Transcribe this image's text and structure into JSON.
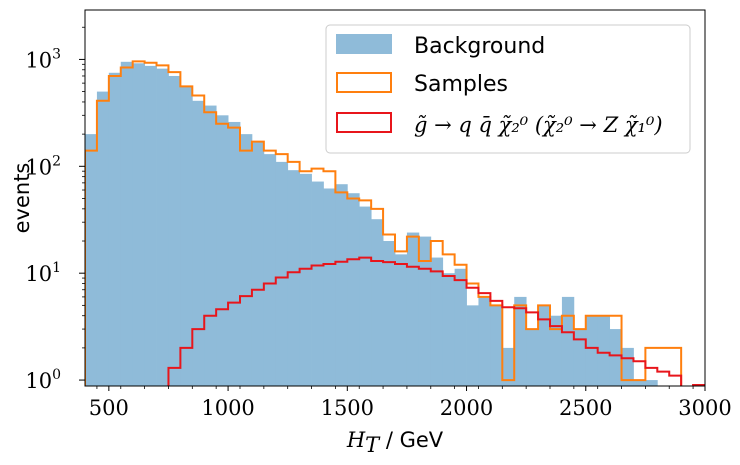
{
  "chart_data": {
    "type": "histogram",
    "xlabel": "H_T / GeV",
    "ylabel": "events",
    "xlim": [
      400,
      3000
    ],
    "ylim": [
      0.88,
      2900
    ],
    "yscale": "log",
    "bin_width": 50,
    "x_ticks": [
      500,
      1000,
      1500,
      2000,
      2500,
      3000
    ],
    "y_ticks": [
      {
        "value": 1,
        "label": "10^0"
      },
      {
        "value": 10,
        "label": "10^1"
      },
      {
        "value": 100,
        "label": "10^2"
      },
      {
        "value": 1000,
        "label": "10^3"
      }
    ],
    "legend_position": "top-right",
    "series": [
      {
        "name": "Background",
        "style": "filled",
        "color": "#8fbbd9",
        "bins_start": 400,
        "values": [
          200,
          500,
          750,
          950,
          920,
          870,
          820,
          700,
          560,
          410,
          370,
          300,
          260,
          200,
          170,
          130,
          110,
          92,
          85,
          72,
          62,
          68,
          56,
          42,
          32,
          20,
          15,
          24,
          22,
          14,
          10,
          11,
          5,
          6,
          5,
          2,
          6,
          3,
          5,
          4,
          6,
          3,
          4,
          4,
          3,
          2,
          1,
          1,
          0,
          0,
          0,
          0
        ]
      },
      {
        "name": "Samples",
        "style": "step",
        "color": "#ff7f0e",
        "bins_start": 400,
        "values": [
          140,
          410,
          700,
          840,
          960,
          930,
          880,
          760,
          560,
          460,
          320,
          250,
          230,
          140,
          170,
          140,
          130,
          110,
          90,
          95,
          90,
          57,
          50,
          48,
          40,
          23,
          16,
          22,
          13,
          20,
          15,
          12,
          8,
          6,
          5,
          1,
          5,
          3,
          5,
          3,
          4,
          3,
          4,
          4,
          4,
          1,
          1,
          2,
          2,
          2,
          0,
          0
        ]
      },
      {
        "name": "g̃ → q q̄ χ̃₂⁰  (χ̃₂⁰ → Z χ̃₁⁰)",
        "style": "step",
        "color": "#e8151b",
        "bins_start": 700,
        "values": [
          0.85,
          1.3,
          2.0,
          3.0,
          4.0,
          4.6,
          5.3,
          6.1,
          7.0,
          8.0,
          9.1,
          10.2,
          11.0,
          11.8,
          12.2,
          12.8,
          13.5,
          14.0,
          13.0,
          12.7,
          12.2,
          11.5,
          11.0,
          10.4,
          9.4,
          8.6,
          7.3,
          6.5,
          5.5,
          4.8,
          4.7,
          4.3,
          3.7,
          3.2,
          2.8,
          2.4,
          2.0,
          1.8,
          1.7,
          1.6,
          1.5,
          1.3,
          1.2,
          1.1,
          0.85,
          0.9
        ]
      }
    ]
  }
}
